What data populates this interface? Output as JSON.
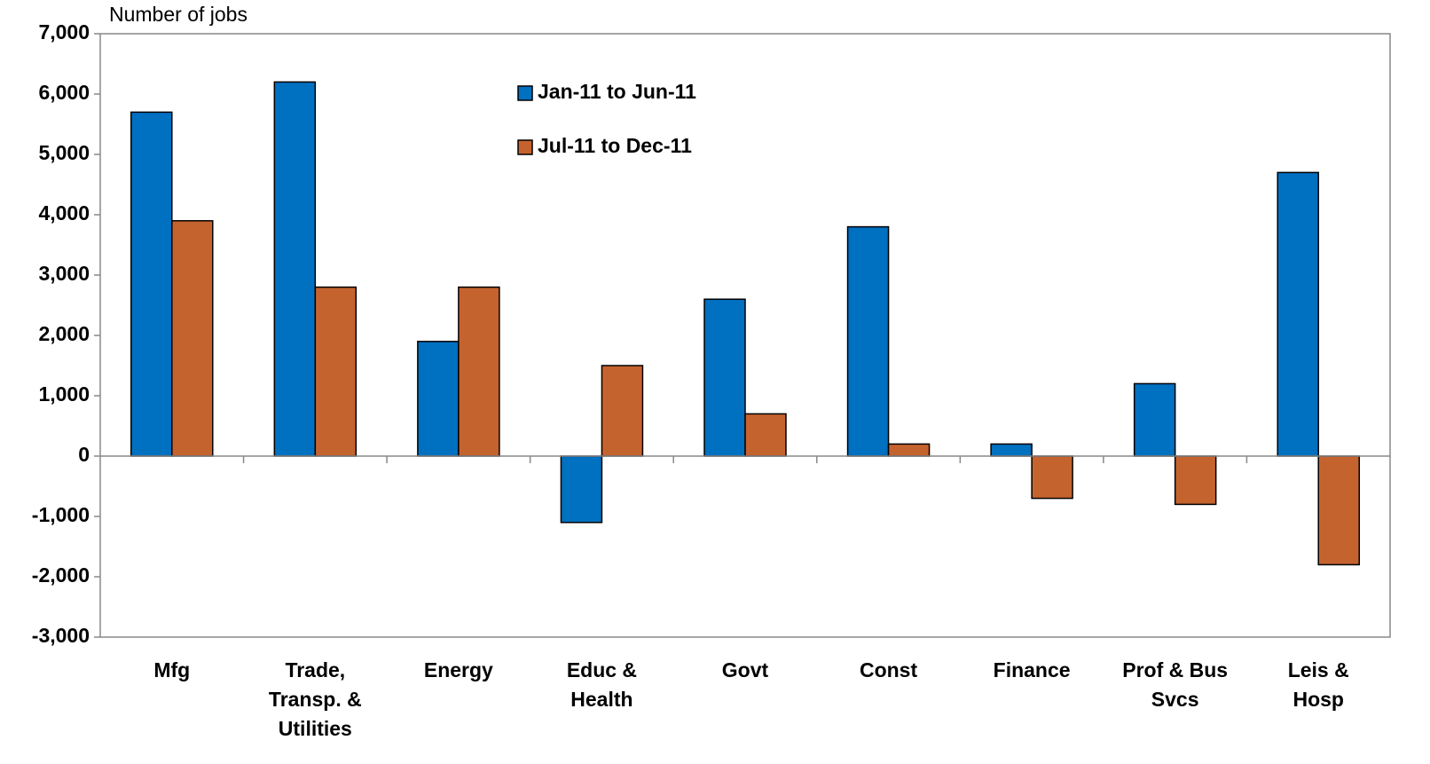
{
  "chart_data": {
    "type": "bar",
    "y_label": "Number of jobs",
    "categories": [
      "Mfg",
      "Trade, Transp. & Utilities",
      "Energy",
      "Educ & Health",
      "Govt",
      "Const",
      "Finance",
      "Prof & Bus Svcs",
      "Leis & Hosp"
    ],
    "series": [
      {
        "name": "Jan-11 to Jun-11",
        "color": "#0070c0",
        "values": [
          5700,
          6200,
          1900,
          -1100,
          2600,
          3800,
          200,
          1200,
          4700
        ]
      },
      {
        "name": "Jul-11 to Dec-11",
        "color": "#c5632f",
        "values": [
          3900,
          2800,
          2800,
          1500,
          700,
          200,
          -700,
          -800,
          -1800
        ]
      }
    ],
    "ylim": [
      -3000,
      7000
    ],
    "yticks": [
      {
        "value": -3000,
        "label": "-3,000"
      },
      {
        "value": -2000,
        "label": "-2,000"
      },
      {
        "value": -1000,
        "label": "-1,000"
      },
      0,
      {
        "value": 1000,
        "label": "1,000"
      },
      {
        "value": 2000,
        "label": "2,000"
      },
      {
        "value": 3000,
        "label": "3,000"
      },
      {
        "value": 4000,
        "label": "4,000"
      },
      {
        "value": 5000,
        "label": "5,000"
      },
      {
        "value": 6000,
        "label": "6,000"
      },
      {
        "value": 7000,
        "label": "7,000"
      }
    ],
    "grid": false,
    "legend": "top center"
  }
}
